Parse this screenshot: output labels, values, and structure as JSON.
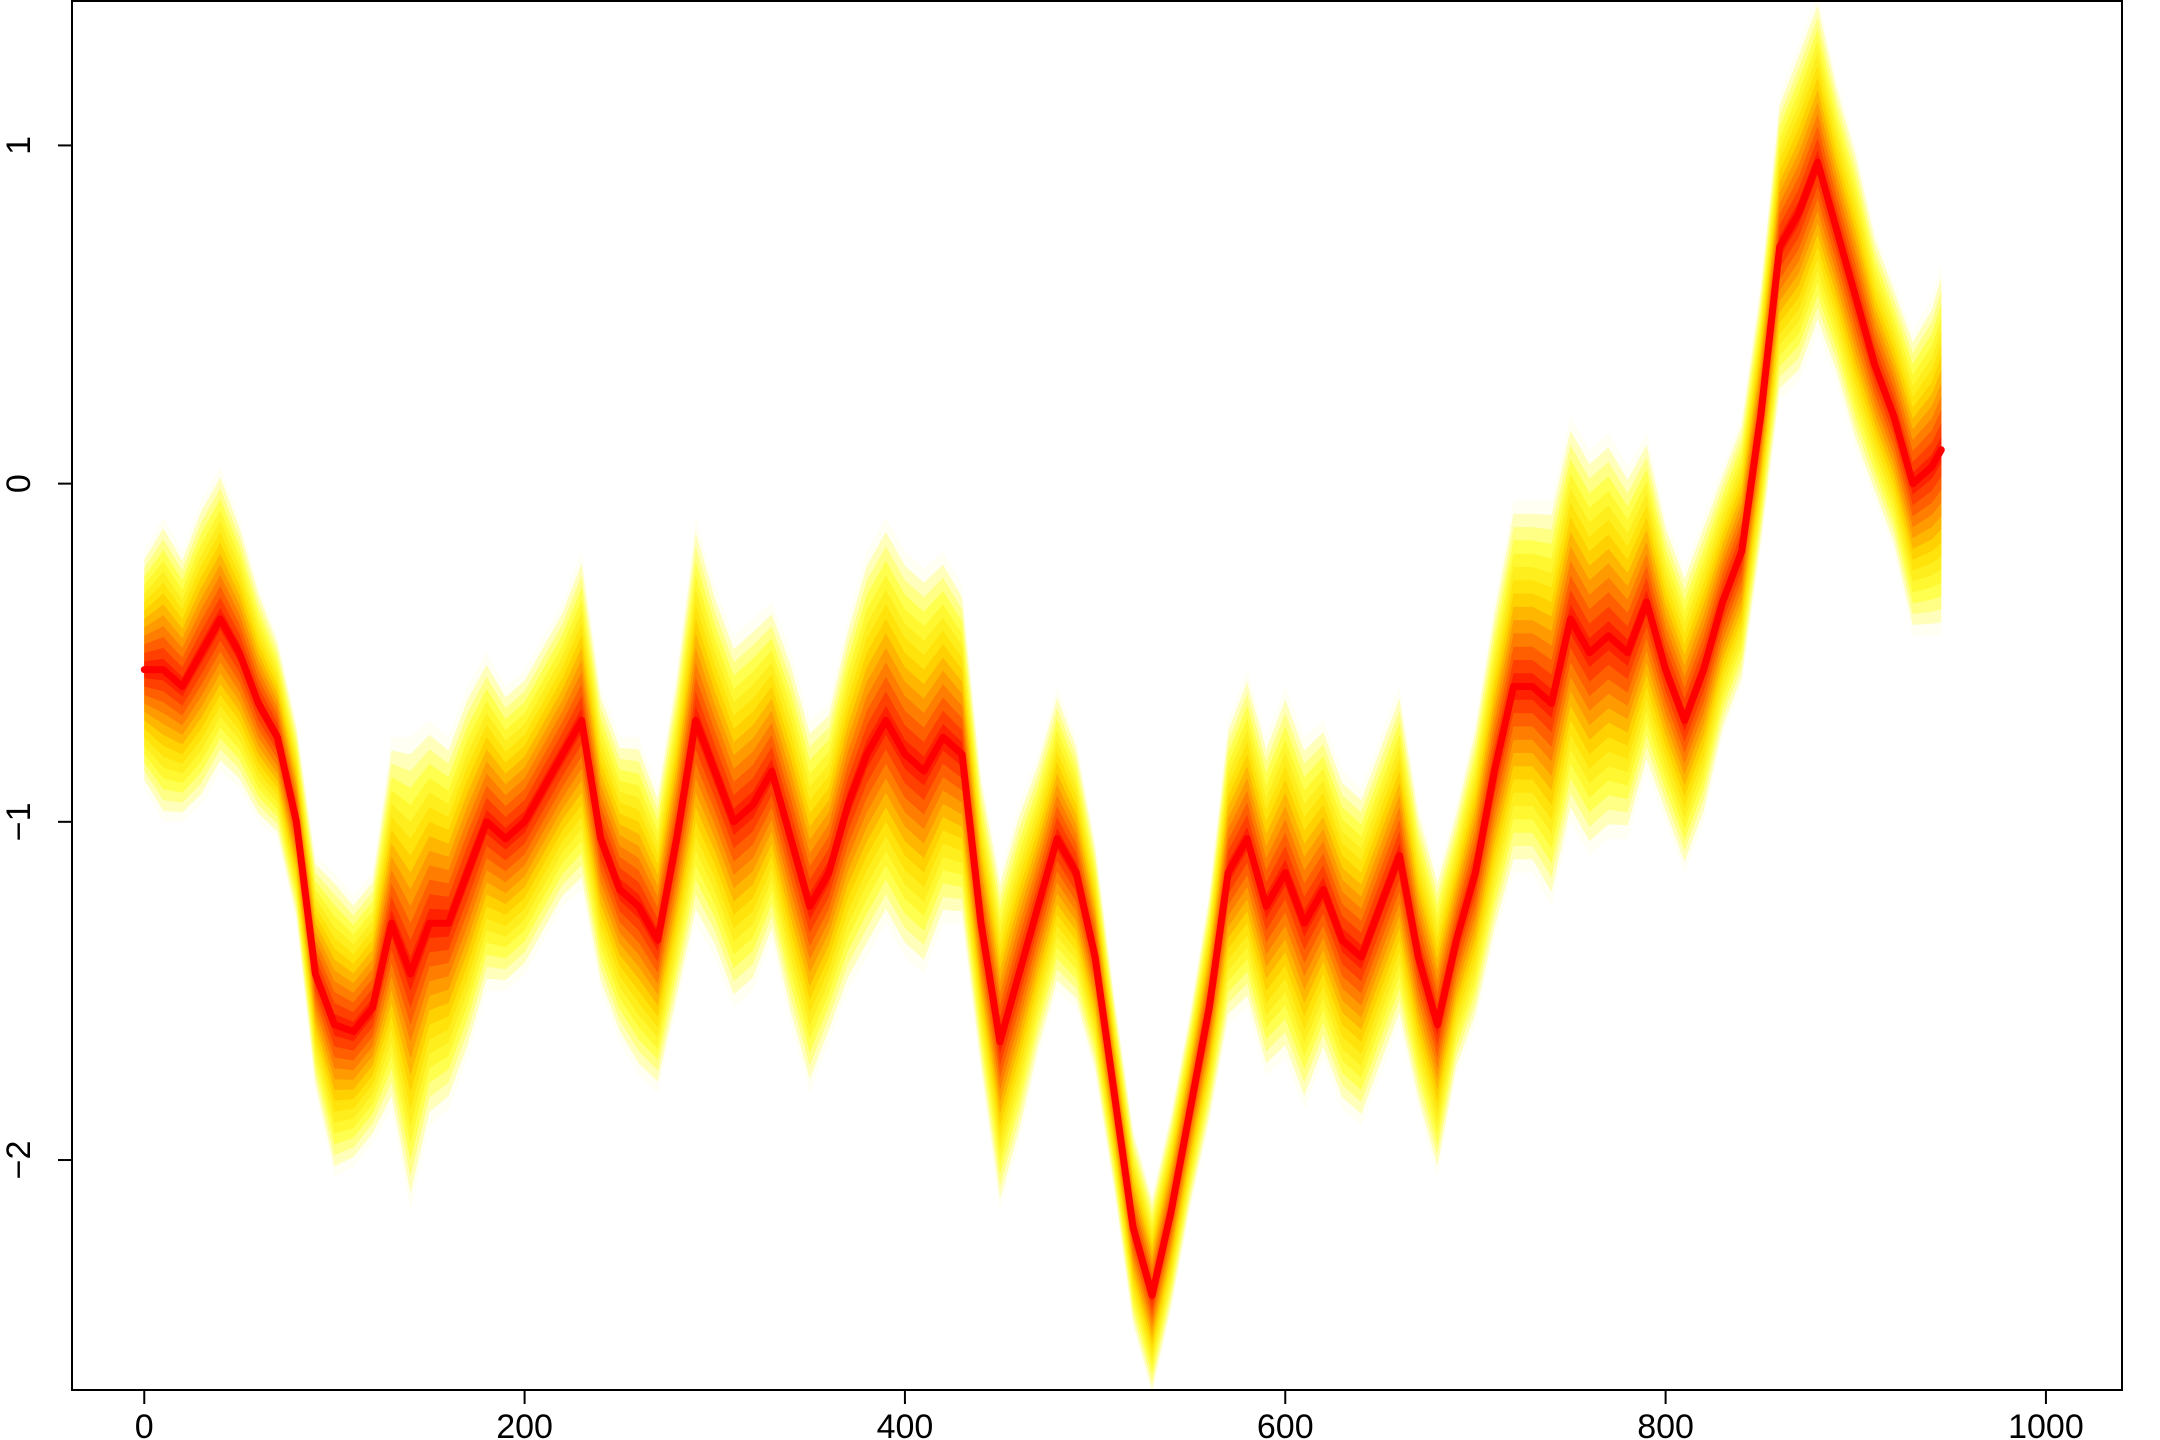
{
  "chart_data": {
    "type": "area",
    "title": "",
    "xlabel": "",
    "ylabel": "",
    "xlim": [
      -38,
      1040
    ],
    "ylim": [
      -2.68,
      1.43
    ],
    "x_ticks": [
      0,
      200,
      400,
      600,
      800,
      1000
    ],
    "y_ticks": [
      -2,
      -1,
      0,
      1
    ],
    "x_tick_labels": [
      "0",
      "200",
      "400",
      "600",
      "800",
      "1000"
    ],
    "y_tick_labels": [
      "−2",
      "−1",
      "0",
      "1"
    ],
    "grid": false,
    "legend": "none",
    "colors": {
      "center": "#ff0000",
      "mid": "#ff8000",
      "outer": "#ffff00",
      "background": "#ffffff"
    },
    "series": [
      {
        "x": [
          0,
          10,
          20,
          30,
          40,
          50,
          60,
          70,
          80,
          90,
          100,
          110,
          120,
          130,
          140,
          150,
          160,
          170,
          180,
          190,
          200,
          210,
          220,
          230,
          240,
          250,
          260,
          270,
          280,
          290,
          300,
          310,
          320,
          330,
          340,
          350,
          360,
          370,
          380,
          390,
          400,
          410,
          420,
          430,
          440,
          450,
          460,
          470,
          480,
          490,
          500,
          510,
          520,
          530,
          540,
          550,
          560,
          570,
          580,
          590,
          600,
          610,
          620,
          630,
          640,
          650,
          660,
          670,
          680,
          690,
          700,
          710,
          720,
          730,
          740,
          750,
          760,
          770,
          780,
          790,
          800,
          810,
          820,
          830,
          840,
          850,
          860,
          870,
          880,
          890,
          900,
          910,
          920,
          930,
          940,
          945
        ],
        "values": [
          -0.55,
          -0.55,
          -0.6,
          -0.5,
          -0.4,
          -0.5,
          -0.65,
          -0.75,
          -1.0,
          -1.45,
          -1.6,
          -1.62,
          -1.55,
          -1.3,
          -1.45,
          -1.3,
          -1.3,
          -1.15,
          -1.0,
          -1.05,
          -1.0,
          -0.9,
          -0.8,
          -0.7,
          -1.05,
          -1.2,
          -1.25,
          -1.35,
          -1.05,
          -0.7,
          -0.85,
          -1.0,
          -0.95,
          -0.85,
          -1.05,
          -1.25,
          -1.15,
          -0.95,
          -0.8,
          -0.7,
          -0.8,
          -0.85,
          -0.75,
          -0.8,
          -1.3,
          -1.65,
          -1.45,
          -1.25,
          -1.05,
          -1.15,
          -1.4,
          -1.8,
          -2.2,
          -2.4,
          -2.15,
          -1.85,
          -1.55,
          -1.15,
          -1.05,
          -1.25,
          -1.15,
          -1.3,
          -1.2,
          -1.35,
          -1.4,
          -1.25,
          -1.1,
          -1.4,
          -1.6,
          -1.35,
          -1.15,
          -0.85,
          -0.6,
          -0.6,
          -0.65,
          -0.4,
          -0.5,
          -0.45,
          -0.5,
          -0.35,
          -0.55,
          -0.7,
          -0.55,
          -0.35,
          -0.2,
          0.2,
          0.7,
          0.8,
          0.95,
          0.75,
          0.55,
          0.35,
          0.2,
          0.0,
          0.05,
          0.1
        ],
        "spread": [
          0.35,
          0.45,
          0.4,
          0.45,
          0.45,
          0.4,
          0.35,
          0.3,
          0.3,
          0.35,
          0.45,
          0.4,
          0.4,
          0.55,
          0.7,
          0.6,
          0.55,
          0.55,
          0.5,
          0.45,
          0.45,
          0.45,
          0.45,
          0.5,
          0.45,
          0.45,
          0.5,
          0.45,
          0.5,
          0.6,
          0.55,
          0.55,
          0.55,
          0.5,
          0.55,
          0.55,
          0.5,
          0.55,
          0.6,
          0.6,
          0.6,
          0.6,
          0.55,
          0.5,
          0.45,
          0.5,
          0.5,
          0.45,
          0.45,
          0.4,
          0.35,
          0.3,
          0.3,
          0.3,
          0.3,
          0.3,
          0.35,
          0.45,
          0.5,
          0.5,
          0.55,
          0.55,
          0.5,
          0.5,
          0.5,
          0.5,
          0.5,
          0.45,
          0.45,
          0.4,
          0.45,
          0.5,
          0.55,
          0.55,
          0.6,
          0.6,
          0.6,
          0.6,
          0.55,
          0.5,
          0.45,
          0.45,
          0.45,
          0.4,
          0.4,
          0.4,
          0.45,
          0.5,
          0.5,
          0.45,
          0.45,
          0.4,
          0.4,
          0.45,
          0.5,
          0.55
        ]
      }
    ]
  }
}
